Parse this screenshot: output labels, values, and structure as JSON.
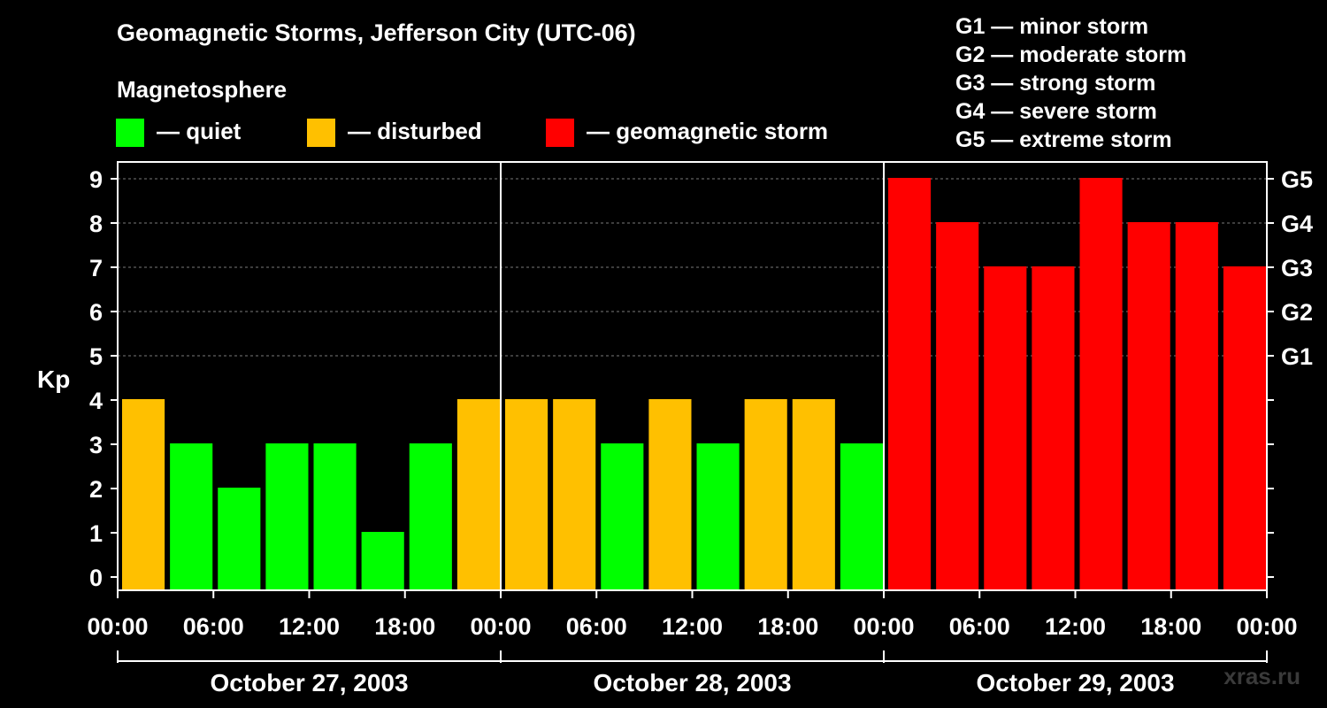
{
  "title": "Geomagnetic Storms, Jefferson City (UTC-06)",
  "section_label": "Magnetosphere",
  "legend": [
    {
      "label": "— quiet",
      "color": "#00ff00"
    },
    {
      "label": "— disturbed",
      "color": "#ffc000"
    },
    {
      "label": "— geomagnetic storm",
      "color": "#ff0000"
    }
  ],
  "g_scale": [
    "G1 — minor storm",
    "G2 — moderate storm",
    "G3 — strong storm",
    "G4 — severe storm",
    "G5 — extreme storm"
  ],
  "watermark": "xras.ru",
  "chart_data": {
    "type": "bar",
    "title": "Geomagnetic Storms, Jefferson City (UTC-06)",
    "ylabel": "Kp",
    "ylim": [
      0,
      9
    ],
    "yticks": [
      "0",
      "1",
      "2",
      "3",
      "4",
      "5",
      "6",
      "7",
      "8",
      "9"
    ],
    "right_ticks": [
      {
        "kp": 5,
        "label": "G1"
      },
      {
        "kp": 6,
        "label": "G2"
      },
      {
        "kp": 7,
        "label": "G3"
      },
      {
        "kp": 8,
        "label": "G4"
      },
      {
        "kp": 9,
        "label": "G5"
      }
    ],
    "x_tick_labels": [
      "00:00",
      "06:00",
      "12:00",
      "18:00",
      "00:00",
      "06:00",
      "12:00",
      "18:00",
      "00:00",
      "06:00",
      "12:00",
      "18:00",
      "00:00"
    ],
    "days": [
      "October 27, 2003",
      "October 28, 2003",
      "October 29, 2003"
    ],
    "bars_per_day": 8,
    "values": [
      4,
      3,
      2,
      3,
      3,
      1,
      3,
      4,
      4,
      4,
      3,
      4,
      3,
      4,
      4,
      3,
      9,
      8,
      7,
      7,
      9,
      8,
      8,
      7
    ],
    "colors": {
      "quiet": "#00ff00",
      "disturbed": "#ffc000",
      "storm": "#ff0000"
    },
    "grid": "dashed horizontal lines at Kp 5-9"
  }
}
